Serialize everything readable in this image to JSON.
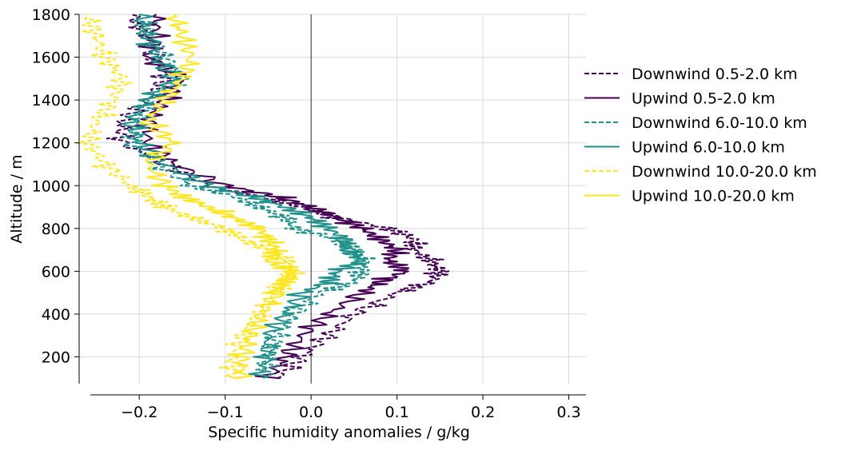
{
  "chart_data": {
    "type": "line",
    "xlabel": "Specific humidity anomalies / g/kg",
    "ylabel": "Altitude / m",
    "xlim": [
      -0.27,
      0.32
    ],
    "ylim": [
      75,
      1800
    ],
    "xticks": [
      -0.2,
      -0.1,
      0.0,
      0.1,
      0.2,
      0.3
    ],
    "xtick_labels": [
      "−0.2",
      "−0.1",
      "0.0",
      "0.1",
      "0.2",
      "0.3"
    ],
    "yticks": [
      200,
      400,
      600,
      800,
      1000,
      1200,
      1400,
      1600,
      1800
    ],
    "ytick_labels": [
      "200",
      "400",
      "600",
      "800",
      "1000",
      "1200",
      "1400",
      "1600",
      "1800"
    ],
    "grid": true,
    "zero_line": 0.0,
    "legend_position": "right, outside plot",
    "colors": {
      "purple": "#440154",
      "teal": "#21918c",
      "yellow": "#fde725"
    },
    "series": [
      {
        "name": "Downwind 0.5-2.0 km",
        "style": "dashed",
        "color": "#440154",
        "altitude": [
          100,
          200,
          300,
          400,
          500,
          550,
          600,
          650,
          700,
          750,
          800,
          850,
          900,
          950,
          1000,
          1100,
          1200,
          1300,
          1400,
          1500,
          1600,
          1700,
          1800
        ],
        "values": [
          -0.04,
          -0.01,
          0.02,
          0.05,
          0.1,
          0.14,
          0.15,
          0.14,
          0.12,
          0.12,
          0.09,
          0.03,
          -0.01,
          -0.06,
          -0.12,
          -0.17,
          -0.22,
          -0.22,
          -0.19,
          -0.17,
          -0.18,
          -0.19,
          -0.21
        ]
      },
      {
        "name": "Upwind 0.5-2.0 km",
        "style": "solid",
        "color": "#440154",
        "altitude": [
          100,
          200,
          300,
          400,
          500,
          550,
          600,
          650,
          700,
          750,
          800,
          850,
          900,
          950,
          1000,
          1100,
          1200,
          1300,
          1400,
          1500,
          1600,
          1700,
          1800
        ],
        "values": [
          -0.05,
          -0.03,
          -0.01,
          0.02,
          0.06,
          0.08,
          0.11,
          0.09,
          0.1,
          0.08,
          0.06,
          0.03,
          0.0,
          -0.04,
          -0.1,
          -0.16,
          -0.19,
          -0.19,
          -0.17,
          -0.15,
          -0.19,
          -0.18,
          -0.18
        ]
      },
      {
        "name": "Downwind 6.0-10.0 km",
        "style": "dashed",
        "color": "#21918c",
        "altitude": [
          100,
          200,
          300,
          400,
          500,
          550,
          600,
          650,
          700,
          750,
          800,
          850,
          900,
          950,
          1000,
          1100,
          1200,
          1300,
          1400,
          1500,
          1600,
          1700,
          1800
        ],
        "values": [
          -0.05,
          -0.05,
          -0.04,
          -0.02,
          0.01,
          0.05,
          0.06,
          0.06,
          0.05,
          0.03,
          -0.02,
          -0.03,
          -0.06,
          -0.09,
          -0.14,
          -0.18,
          -0.21,
          -0.2,
          -0.19,
          -0.15,
          -0.17,
          -0.19,
          -0.2
        ]
      },
      {
        "name": "Upwind 6.0-10.0 km",
        "style": "solid",
        "color": "#21918c",
        "altitude": [
          100,
          200,
          300,
          400,
          500,
          550,
          600,
          650,
          700,
          750,
          800,
          850,
          900,
          950,
          1000,
          1100,
          1200,
          1300,
          1400,
          1500,
          1600,
          1700,
          1800
        ],
        "values": [
          -0.06,
          -0.05,
          -0.05,
          -0.03,
          -0.01,
          0.02,
          0.03,
          0.06,
          0.04,
          0.04,
          0.02,
          0.0,
          -0.03,
          -0.07,
          -0.12,
          -0.17,
          -0.2,
          -0.21,
          -0.19,
          -0.16,
          -0.18,
          -0.19,
          -0.2
        ]
      },
      {
        "name": "Downwind 10.0-20.0 km",
        "style": "dashed",
        "color": "#fde725",
        "altitude": [
          100,
          200,
          300,
          400,
          500,
          550,
          600,
          650,
          700,
          750,
          800,
          850,
          900,
          950,
          1000,
          1100,
          1200,
          1300,
          1400,
          1500,
          1600,
          1700,
          1800
        ],
        "values": [
          -0.09,
          -0.09,
          -0.08,
          -0.06,
          -0.04,
          -0.03,
          -0.02,
          -0.03,
          -0.05,
          -0.08,
          -0.1,
          -0.14,
          -0.17,
          -0.19,
          -0.21,
          -0.24,
          -0.26,
          -0.25,
          -0.23,
          -0.22,
          -0.24,
          -0.25,
          -0.26
        ]
      },
      {
        "name": "Upwind 10.0-20.0 km",
        "style": "solid",
        "color": "#fde725",
        "altitude": [
          100,
          200,
          300,
          400,
          500,
          550,
          600,
          650,
          700,
          750,
          800,
          850,
          900,
          950,
          1000,
          1100,
          1200,
          1300,
          1400,
          1500,
          1600,
          1700,
          1800
        ],
        "values": [
          -0.08,
          -0.08,
          -0.07,
          -0.06,
          -0.04,
          -0.03,
          -0.02,
          -0.05,
          -0.04,
          -0.05,
          -0.06,
          -0.09,
          -0.12,
          -0.15,
          -0.17,
          -0.19,
          -0.16,
          -0.19,
          -0.17,
          -0.15,
          -0.14,
          -0.15,
          -0.16
        ]
      }
    ]
  }
}
